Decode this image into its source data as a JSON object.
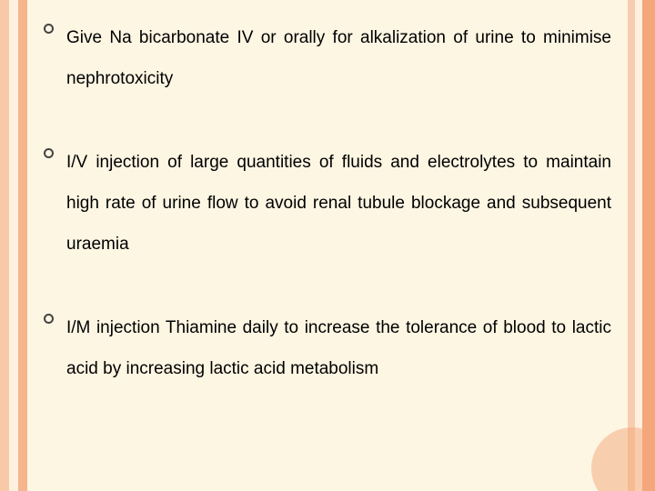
{
  "slide": {
    "background_color": "#fdf6e3",
    "stripes": {
      "left": [
        "#f8c9a8",
        "#fdf0de",
        "#f5b68e"
      ],
      "right": [
        "#f4a77a",
        "#fdf0de",
        "#f8cdaf"
      ]
    },
    "text_color": "#000000",
    "font_family": "Arial",
    "body_fontsize": 19,
    "line_height": 2.35,
    "bullet_marker": {
      "shape": "hollow-circle",
      "size": 11,
      "border_width": 2,
      "color": "#444444"
    },
    "bullets": [
      {
        "text": "Give Na bicarbonate IV or orally for alkalization of urine to minimise nephrotoxicity"
      },
      {
        "text": "I/V injection of large quantities of fluids and electrolytes to maintain high rate of urine flow to avoid renal tubule blockage and subsequent uraemia"
      },
      {
        "text": "I/M injection Thiamine daily to increase the tolerance of blood to lactic acid by increasing lactic acid metabolism"
      }
    ]
  }
}
